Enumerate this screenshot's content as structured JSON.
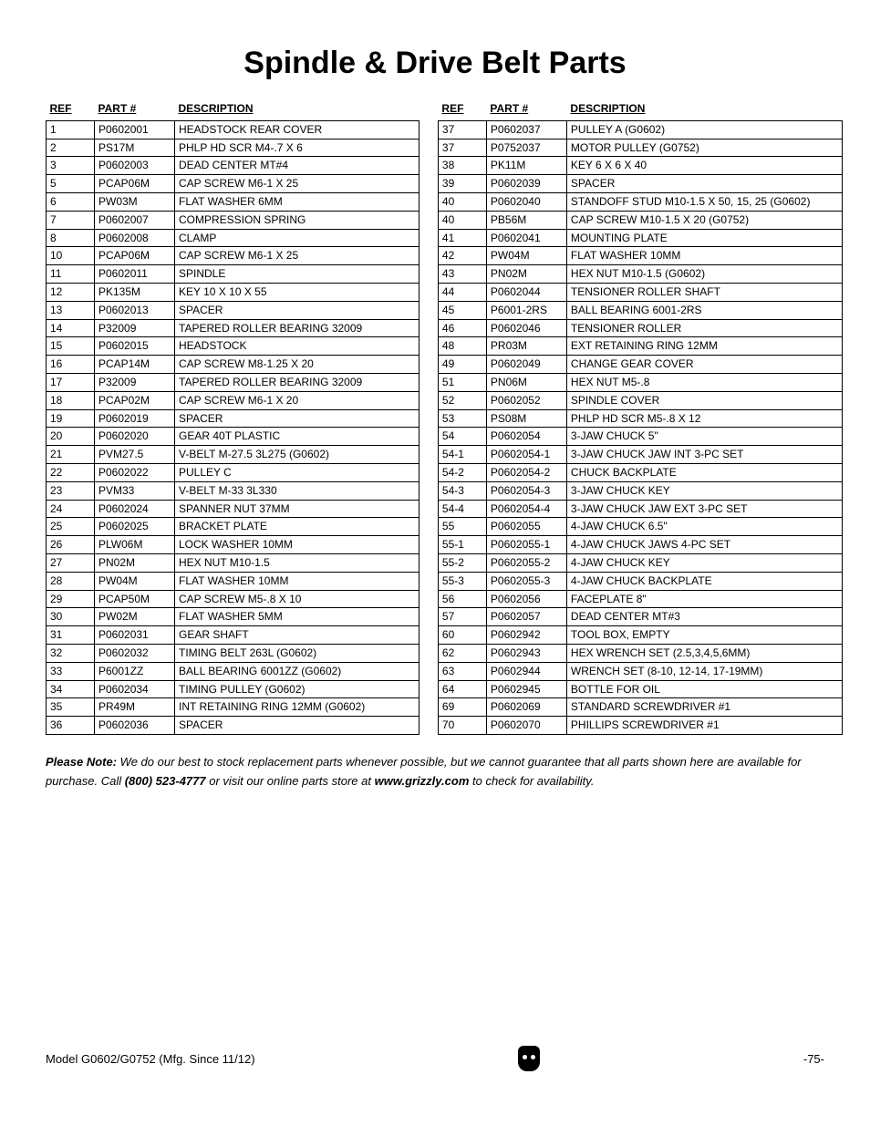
{
  "title": "Spindle & Drive Belt Parts",
  "headers": {
    "ref": "REF",
    "part": "PART #",
    "desc": "DESCRIPTION"
  },
  "table_left": [
    {
      "ref": "1",
      "part": "P0602001",
      "desc": "HEADSTOCK REAR COVER"
    },
    {
      "ref": "2",
      "part": "PS17M",
      "desc": "PHLP HD SCR M4-.7 X 6"
    },
    {
      "ref": "3",
      "part": "P0602003",
      "desc": "DEAD CENTER MT#4"
    },
    {
      "ref": "5",
      "part": "PCAP06M",
      "desc": "CAP SCREW M6-1 X 25"
    },
    {
      "ref": "6",
      "part": "PW03M",
      "desc": "FLAT WASHER 6MM"
    },
    {
      "ref": "7",
      "part": "P0602007",
      "desc": "COMPRESSION SPRING"
    },
    {
      "ref": "8",
      "part": "P0602008",
      "desc": "CLAMP"
    },
    {
      "ref": "10",
      "part": "PCAP06M",
      "desc": "CAP SCREW M6-1 X 25"
    },
    {
      "ref": "11",
      "part": "P0602011",
      "desc": "SPINDLE"
    },
    {
      "ref": "12",
      "part": "PK135M",
      "desc": "KEY 10 X 10 X  55"
    },
    {
      "ref": "13",
      "part": "P0602013",
      "desc": "SPACER"
    },
    {
      "ref": "14",
      "part": "P32009",
      "desc": "TAPERED ROLLER BEARING 32009"
    },
    {
      "ref": "15",
      "part": "P0602015",
      "desc": "HEADSTOCK"
    },
    {
      "ref": "16",
      "part": "PCAP14M",
      "desc": "CAP SCREW M8-1.25 X 20"
    },
    {
      "ref": "17",
      "part": "P32009",
      "desc": "TAPERED ROLLER BEARING 32009"
    },
    {
      "ref": "18",
      "part": "PCAP02M",
      "desc": "CAP SCREW M6-1 X 20"
    },
    {
      "ref": "19",
      "part": "P0602019",
      "desc": "SPACER"
    },
    {
      "ref": "20",
      "part": "P0602020",
      "desc": "GEAR 40T PLASTIC"
    },
    {
      "ref": "21",
      "part": "PVM27.5",
      "desc": "V-BELT M-27.5 3L275 (G0602)"
    },
    {
      "ref": "22",
      "part": "P0602022",
      "desc": "PULLEY C"
    },
    {
      "ref": "23",
      "part": "PVM33",
      "desc": "V-BELT M-33 3L330"
    },
    {
      "ref": "24",
      "part": "P0602024",
      "desc": "SPANNER NUT 37MM"
    },
    {
      "ref": "25",
      "part": "P0602025",
      "desc": "BRACKET PLATE"
    },
    {
      "ref": "26",
      "part": "PLW06M",
      "desc": "LOCK WASHER 10MM"
    },
    {
      "ref": "27",
      "part": "PN02M",
      "desc": "HEX NUT M10-1.5"
    },
    {
      "ref": "28",
      "part": "PW04M",
      "desc": "FLAT WASHER 10MM"
    },
    {
      "ref": "29",
      "part": "PCAP50M",
      "desc": "CAP SCREW M5-.8 X 10"
    },
    {
      "ref": "30",
      "part": "PW02M",
      "desc": "FLAT WASHER 5MM"
    },
    {
      "ref": "31",
      "part": "P0602031",
      "desc": "GEAR SHAFT"
    },
    {
      "ref": "32",
      "part": "P0602032",
      "desc": "TIMING BELT 263L (G0602)"
    },
    {
      "ref": "33",
      "part": "P6001ZZ",
      "desc": "BALL BEARING 6001ZZ (G0602)"
    },
    {
      "ref": "34",
      "part": "P0602034",
      "desc": "TIMING PULLEY (G0602)"
    },
    {
      "ref": "35",
      "part": "PR49M",
      "desc": "INT RETAINING RING 12MM (G0602)"
    },
    {
      "ref": "36",
      "part": "P0602036",
      "desc": "SPACER"
    }
  ],
  "table_right": [
    {
      "ref": "37",
      "part": "P0602037",
      "desc": "PULLEY A (G0602)"
    },
    {
      "ref": "37",
      "part": "P0752037",
      "desc": "MOTOR PULLEY (G0752)"
    },
    {
      "ref": "38",
      "part": "PK11M",
      "desc": "KEY 6 X 6 X 40"
    },
    {
      "ref": "39",
      "part": "P0602039",
      "desc": "SPACER"
    },
    {
      "ref": "40",
      "part": "P0602040",
      "desc": "STANDOFF STUD M10-1.5 X 50, 15, 25 (G0602)"
    },
    {
      "ref": "40",
      "part": "PB56M",
      "desc": "CAP SCREW M10-1.5 X 20 (G0752)"
    },
    {
      "ref": "41",
      "part": "P0602041",
      "desc": "MOUNTING PLATE"
    },
    {
      "ref": "42",
      "part": "PW04M",
      "desc": "FLAT WASHER 10MM"
    },
    {
      "ref": "43",
      "part": "PN02M",
      "desc": "HEX NUT M10-1.5 (G0602)"
    },
    {
      "ref": "44",
      "part": "P0602044",
      "desc": "TENSIONER ROLLER SHAFT"
    },
    {
      "ref": "45",
      "part": "P6001-2RS",
      "desc": "BALL BEARING 6001-2RS"
    },
    {
      "ref": "46",
      "part": "P0602046",
      "desc": "TENSIONER ROLLER"
    },
    {
      "ref": "48",
      "part": "PR03M",
      "desc": "EXT RETAINING RING 12MM"
    },
    {
      "ref": "49",
      "part": "P0602049",
      "desc": "CHANGE GEAR COVER"
    },
    {
      "ref": "51",
      "part": "PN06M",
      "desc": "HEX NUT M5-.8"
    },
    {
      "ref": "52",
      "part": "P0602052",
      "desc": "SPINDLE COVER"
    },
    {
      "ref": "53",
      "part": "PS08M",
      "desc": "PHLP HD SCR M5-.8 X 12"
    },
    {
      "ref": "54",
      "part": "P0602054",
      "desc": "3-JAW CHUCK 5\""
    },
    {
      "ref": "54-1",
      "part": "P0602054-1",
      "desc": "3-JAW CHUCK JAW INT 3-PC SET"
    },
    {
      "ref": "54-2",
      "part": "P0602054-2",
      "desc": "CHUCK BACKPLATE"
    },
    {
      "ref": "54-3",
      "part": "P0602054-3",
      "desc": "3-JAW CHUCK KEY"
    },
    {
      "ref": "54-4",
      "part": "P0602054-4",
      "desc": "3-JAW CHUCK JAW EXT 3-PC SET"
    },
    {
      "ref": "55",
      "part": "P0602055",
      "desc": "4-JAW CHUCK 6.5\""
    },
    {
      "ref": "55-1",
      "part": "P0602055-1",
      "desc": "4-JAW CHUCK JAWS 4-PC SET"
    },
    {
      "ref": "55-2",
      "part": "P0602055-2",
      "desc": "4-JAW CHUCK KEY"
    },
    {
      "ref": "55-3",
      "part": "P0602055-3",
      "desc": "4-JAW CHUCK BACKPLATE"
    },
    {
      "ref": "56",
      "part": "P0602056",
      "desc": "FACEPLATE 8\""
    },
    {
      "ref": "57",
      "part": "P0602057",
      "desc": "DEAD CENTER MT#3"
    },
    {
      "ref": "60",
      "part": "P0602942",
      "desc": "TOOL BOX, EMPTY"
    },
    {
      "ref": "62",
      "part": "P0602943",
      "desc": "HEX WRENCH SET (2.5,3,4,5,6MM)"
    },
    {
      "ref": "63",
      "part": "P0602944",
      "desc": "WRENCH SET (8-10, 12-14, 17-19MM)"
    },
    {
      "ref": "64",
      "part": "P0602945",
      "desc": "BOTTLE FOR OIL"
    },
    {
      "ref": "69",
      "part": "P0602069",
      "desc": "STANDARD SCREWDRIVER #1"
    },
    {
      "ref": "70",
      "part": "P0602070",
      "desc": "PHILLIPS SCREWDRIVER #1"
    }
  ],
  "note": {
    "lead": "Please Note:",
    "body1": " We do our best to stock replacement parts whenever possible, but we cannot guarantee that all parts shown here are available for purchase. Call ",
    "phone": "(800) 523-4777",
    "body2": " or visit our online parts store at ",
    "site": "www.grizzly.com",
    "body3": " to check for availability."
  },
  "footer": {
    "left": "Model G0602/G0752 (Mfg. Since 11/12)",
    "right": "-75-"
  }
}
